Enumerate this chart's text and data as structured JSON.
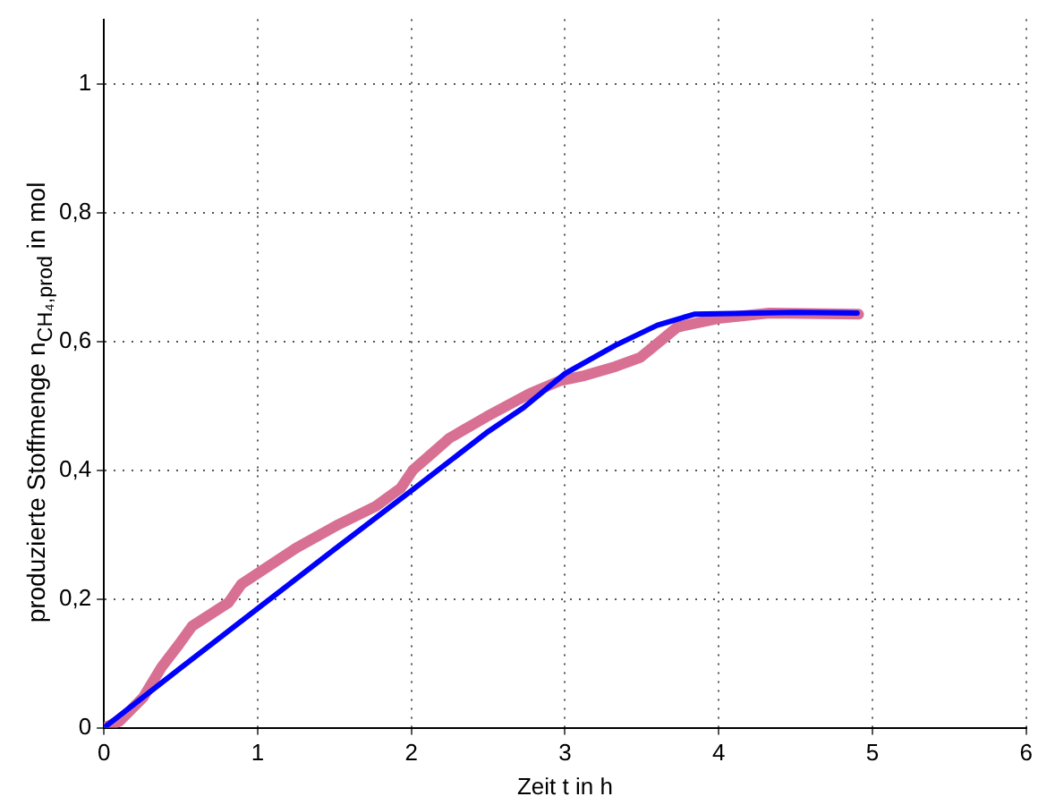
{
  "chart_data": {
    "type": "line",
    "xlabel": "Zeit t in h",
    "ylabel": "produzierte Stoffmenge n$_{CH₄,prod}$ in mol",
    "xlim": [
      0,
      6
    ],
    "xticks": [
      0,
      1,
      2,
      3,
      4,
      5,
      6
    ],
    "ylim": [
      0,
      1.1
    ],
    "yticks": [
      0,
      {
        "value": 0.2,
        "label": "0,2"
      },
      {
        "value": 0.4,
        "label": "0,4"
      },
      {
        "value": 0.6,
        "label": "0,6"
      },
      {
        "value": 0.8,
        "label": "0,8"
      },
      1
    ],
    "grid": true,
    "legend": false,
    "line_style": "solid",
    "marker": "none",
    "series": [
      {
        "color": "#d87093",
        "x": [
          0,
          0.1,
          0.255,
          0.375,
          0.49,
          0.575,
          0.81,
          0.895,
          1.25,
          1.53,
          1.77,
          1.93,
          2.01,
          2.25,
          2.49,
          2.77,
          2.97,
          3.13,
          3.33,
          3.49,
          3.73,
          4.01,
          4.33,
          4.91
        ],
        "values": [
          0,
          0.01,
          0.047,
          0.094,
          0.13,
          0.158,
          0.194,
          0.223,
          0.279,
          0.316,
          0.344,
          0.372,
          0.4,
          0.45,
          0.483,
          0.519,
          0.539,
          0.547,
          0.561,
          0.575,
          0.622,
          0.636,
          0.644,
          0.642
        ]
      },
      {
        "color": "#0000ff",
        "x": [
          0,
          0.5,
          1,
          1.5,
          2,
          2.5,
          2.73,
          3,
          3.33,
          3.6,
          3.84,
          4,
          4.5,
          4.9
        ],
        "values": [
          0,
          0.093,
          0.185,
          0.277,
          0.368,
          0.46,
          0.497,
          0.55,
          0.594,
          0.625,
          0.642,
          0.643,
          0.645,
          0.644
        ]
      }
    ]
  }
}
